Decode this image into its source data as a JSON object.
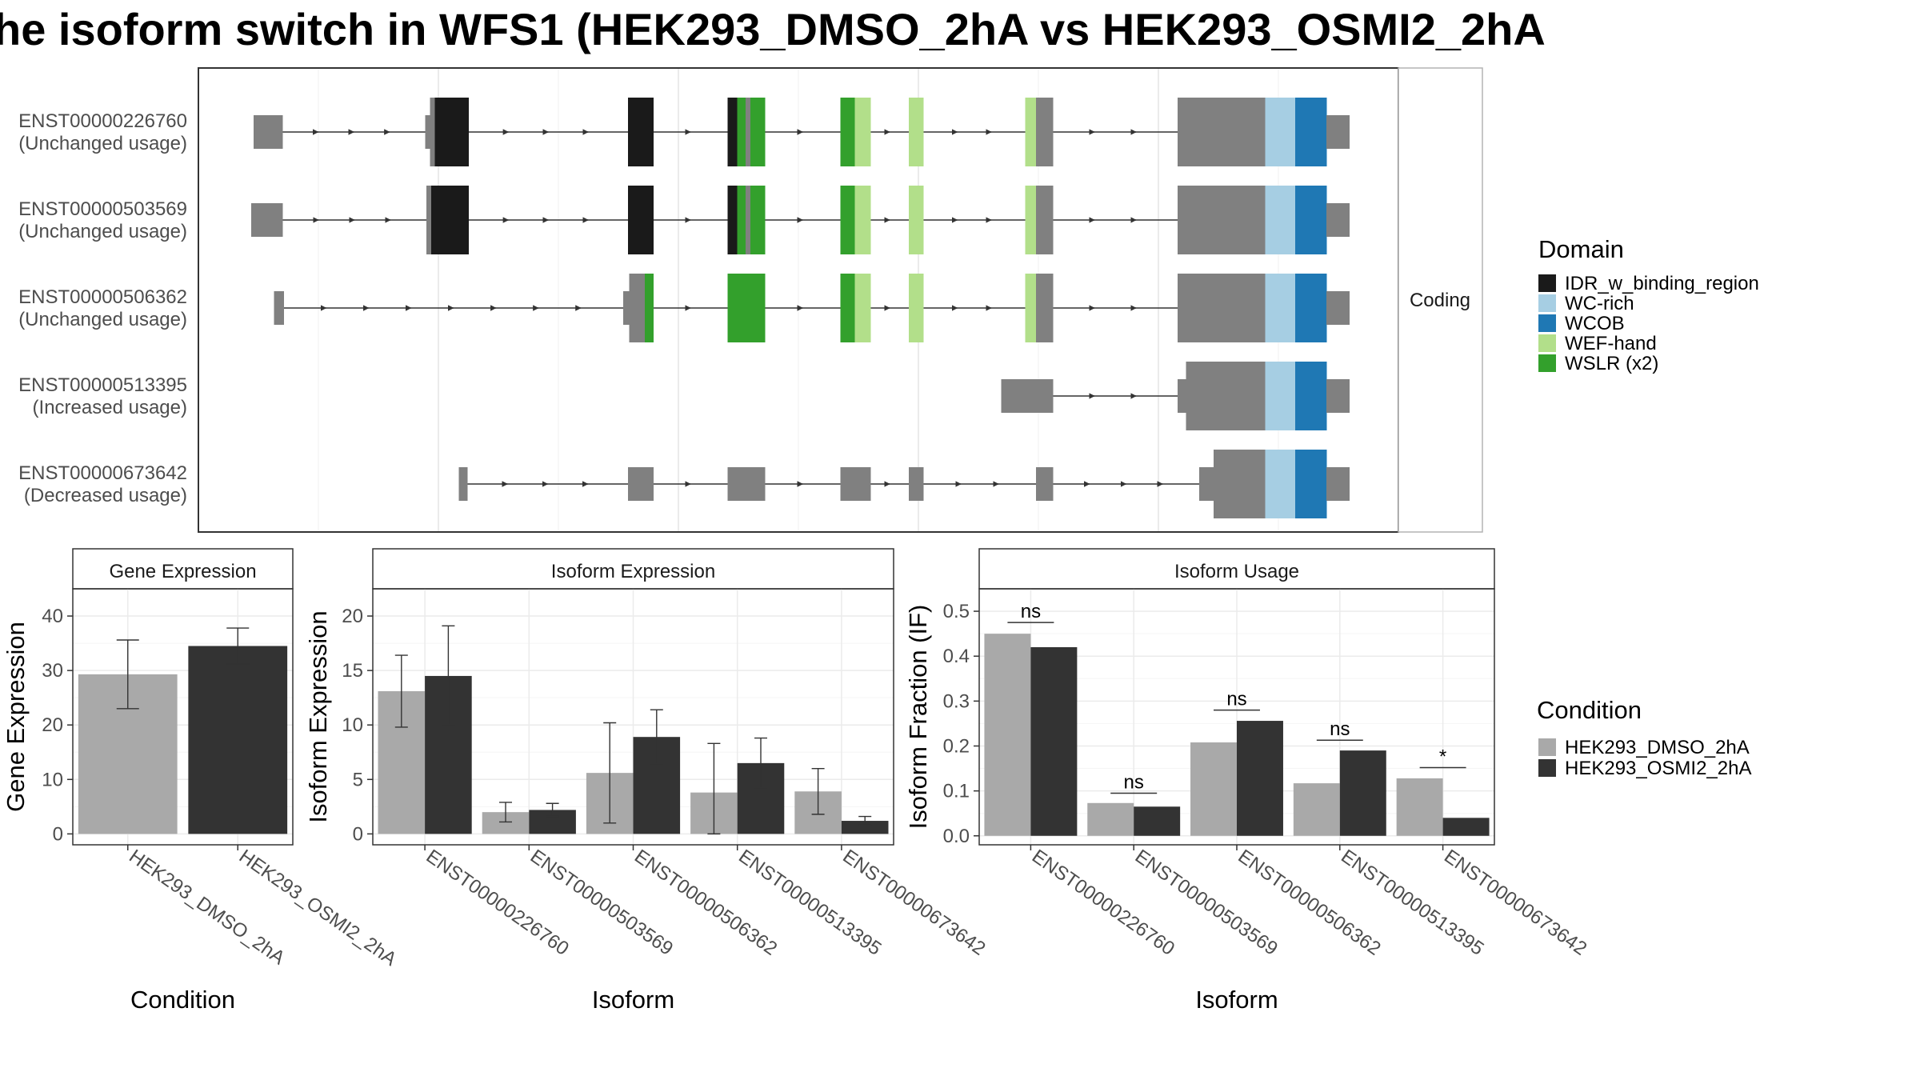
{
  "colors": {
    "gray_exon": "#808080",
    "idr": "#1a1a1a",
    "wc_rich": "#a6cee3",
    "wcob": "#1f78b4",
    "wef_hand": "#b2df8a",
    "wslr": "#33a02c",
    "cond_dmso": "#a9a9a9",
    "cond_osmi2": "#333333"
  },
  "chart_data": [
    {
      "type": "gene-structure",
      "title": "he isoform switch in WFS1 (HEK293_DMSO_2hA vs HEK293_OSMI2_2hA",
      "facet_label": "Coding",
      "legend": {
        "title": "Domain",
        "placement": "right",
        "entries": [
          {
            "label": "IDR_w_binding_region",
            "color": "#1a1a1a"
          },
          {
            "label": "WC-rich",
            "color": "#a6cee3"
          },
          {
            "label": "WCOB",
            "color": "#1f78b4"
          },
          {
            "label": "WEF-hand",
            "color": "#b2df8a"
          },
          {
            "label": "WSLR (x2)",
            "color": "#33a02c"
          }
        ]
      },
      "isoforms": [
        {
          "id": "ENST00000226760",
          "usage": "(Unchanged usage)",
          "start": 4.6,
          "end": 95.9,
          "exons": [
            {
              "s": 4.6,
              "e": 7.0,
              "h": "utr",
              "c": "gray"
            },
            {
              "s": 18.9,
              "e": 19.3,
              "h": "utr",
              "c": "gray"
            },
            {
              "s": 19.3,
              "e": 19.7,
              "h": "cds",
              "c": "gray"
            },
            {
              "s": 19.7,
              "e": 22.5,
              "h": "cds",
              "c": "idr"
            },
            {
              "s": 35.8,
              "e": 37.9,
              "h": "cds",
              "c": "idr"
            },
            {
              "s": 44.1,
              "e": 44.9,
              "h": "cds",
              "c": "idr"
            },
            {
              "s": 44.9,
              "e": 45.6,
              "h": "cds",
              "c": "wslr"
            },
            {
              "s": 45.6,
              "e": 46.0,
              "h": "cds",
              "c": "gray"
            },
            {
              "s": 46.0,
              "e": 47.2,
              "h": "cds",
              "c": "wslr"
            },
            {
              "s": 53.5,
              "e": 54.7,
              "h": "cds",
              "c": "wslr"
            },
            {
              "s": 54.7,
              "e": 56.0,
              "h": "cds",
              "c": "wef_hand"
            },
            {
              "s": 59.2,
              "e": 60.4,
              "h": "cds",
              "c": "wef_hand"
            },
            {
              "s": 68.9,
              "e": 69.8,
              "h": "cds",
              "c": "wef_hand"
            },
            {
              "s": 69.8,
              "e": 71.2,
              "h": "cds",
              "c": "gray"
            },
            {
              "s": 81.6,
              "e": 88.9,
              "h": "cds",
              "c": "gray"
            },
            {
              "s": 88.9,
              "e": 91.4,
              "h": "cds",
              "c": "wc_rich"
            },
            {
              "s": 91.4,
              "e": 94.0,
              "h": "cds",
              "c": "wcob"
            },
            {
              "s": 94.0,
              "e": 95.9,
              "h": "utr",
              "c": "gray"
            }
          ]
        },
        {
          "id": "ENST00000503569",
          "usage": "(Unchanged usage)",
          "start": 4.4,
          "end": 95.9,
          "exons": [
            {
              "s": 4.4,
              "e": 7.0,
              "h": "utr",
              "c": "gray"
            },
            {
              "s": 19.0,
              "e": 19.4,
              "h": "cds",
              "c": "gray"
            },
            {
              "s": 19.4,
              "e": 22.5,
              "h": "cds",
              "c": "idr"
            },
            {
              "s": 35.8,
              "e": 37.9,
              "h": "cds",
              "c": "idr"
            },
            {
              "s": 44.1,
              "e": 44.9,
              "h": "cds",
              "c": "idr"
            },
            {
              "s": 44.9,
              "e": 45.6,
              "h": "cds",
              "c": "wslr"
            },
            {
              "s": 45.6,
              "e": 46.0,
              "h": "cds",
              "c": "gray"
            },
            {
              "s": 46.0,
              "e": 47.2,
              "h": "cds",
              "c": "wslr"
            },
            {
              "s": 53.5,
              "e": 54.7,
              "h": "cds",
              "c": "wslr"
            },
            {
              "s": 54.7,
              "e": 56.0,
              "h": "cds",
              "c": "wef_hand"
            },
            {
              "s": 59.2,
              "e": 60.4,
              "h": "cds",
              "c": "wef_hand"
            },
            {
              "s": 68.9,
              "e": 69.8,
              "h": "cds",
              "c": "wef_hand"
            },
            {
              "s": 69.8,
              "e": 71.2,
              "h": "cds",
              "c": "gray"
            },
            {
              "s": 81.6,
              "e": 88.9,
              "h": "cds",
              "c": "gray"
            },
            {
              "s": 88.9,
              "e": 91.4,
              "h": "cds",
              "c": "wc_rich"
            },
            {
              "s": 91.4,
              "e": 94.0,
              "h": "cds",
              "c": "wcob"
            },
            {
              "s": 94.0,
              "e": 95.9,
              "h": "utr",
              "c": "gray"
            }
          ]
        },
        {
          "id": "ENST00000506362",
          "usage": "(Unchanged usage)",
          "start": 6.3,
          "end": 95.9,
          "exons": [
            {
              "s": 6.3,
              "e": 7.1,
              "h": "utr",
              "c": "gray"
            },
            {
              "s": 35.4,
              "e": 35.9,
              "h": "utr",
              "c": "gray"
            },
            {
              "s": 35.9,
              "e": 37.2,
              "h": "cds",
              "c": "gray"
            },
            {
              "s": 37.2,
              "e": 37.9,
              "h": "cds",
              "c": "wslr"
            },
            {
              "s": 44.1,
              "e": 46.0,
              "h": "cds",
              "c": "wslr"
            },
            {
              "s": 46.0,
              "e": 47.2,
              "h": "cds",
              "c": "wslr"
            },
            {
              "s": 53.5,
              "e": 54.7,
              "h": "cds",
              "c": "wslr"
            },
            {
              "s": 54.7,
              "e": 56.0,
              "h": "cds",
              "c": "wef_hand"
            },
            {
              "s": 59.2,
              "e": 60.4,
              "h": "cds",
              "c": "wef_hand"
            },
            {
              "s": 68.9,
              "e": 69.8,
              "h": "cds",
              "c": "wef_hand"
            },
            {
              "s": 69.8,
              "e": 71.2,
              "h": "cds",
              "c": "gray"
            },
            {
              "s": 81.6,
              "e": 88.9,
              "h": "cds",
              "c": "gray"
            },
            {
              "s": 88.9,
              "e": 91.4,
              "h": "cds",
              "c": "wc_rich"
            },
            {
              "s": 91.4,
              "e": 94.0,
              "h": "cds",
              "c": "wcob"
            },
            {
              "s": 94.0,
              "e": 95.9,
              "h": "utr",
              "c": "gray"
            }
          ]
        },
        {
          "id": "ENST00000513395",
          "usage": "(Increased usage)",
          "start": 66.9,
          "end": 95.9,
          "exons": [
            {
              "s": 66.9,
              "e": 71.2,
              "h": "utr",
              "c": "gray"
            },
            {
              "s": 81.6,
              "e": 82.3,
              "h": "utr",
              "c": "gray"
            },
            {
              "s": 82.3,
              "e": 88.9,
              "h": "cds",
              "c": "gray"
            },
            {
              "s": 88.9,
              "e": 91.4,
              "h": "cds",
              "c": "wc_rich"
            },
            {
              "s": 91.4,
              "e": 94.0,
              "h": "cds",
              "c": "wcob"
            },
            {
              "s": 94.0,
              "e": 95.9,
              "h": "utr",
              "c": "gray"
            }
          ]
        },
        {
          "id": "ENST00000673642",
          "usage": "(Decreased usage)",
          "start": 21.7,
          "end": 95.9,
          "exons": [
            {
              "s": 21.7,
              "e": 22.4,
              "h": "utr",
              "c": "gray"
            },
            {
              "s": 35.8,
              "e": 37.9,
              "h": "utr",
              "c": "gray"
            },
            {
              "s": 44.1,
              "e": 47.2,
              "h": "utr",
              "c": "gray"
            },
            {
              "s": 53.5,
              "e": 56.0,
              "h": "utr",
              "c": "gray"
            },
            {
              "s": 59.2,
              "e": 60.4,
              "h": "utr",
              "c": "gray"
            },
            {
              "s": 69.8,
              "e": 71.2,
              "h": "utr",
              "c": "gray"
            },
            {
              "s": 83.4,
              "e": 84.6,
              "h": "utr",
              "c": "gray"
            },
            {
              "s": 84.6,
              "e": 88.9,
              "h": "cds",
              "c": "gray"
            },
            {
              "s": 88.9,
              "e": 91.4,
              "h": "cds",
              "c": "wc_rich"
            },
            {
              "s": 91.4,
              "e": 94.0,
              "h": "cds",
              "c": "wcob"
            },
            {
              "s": 94.0,
              "e": 95.9,
              "h": "utr",
              "c": "gray"
            }
          ]
        }
      ]
    },
    {
      "type": "bar",
      "title": "Gene Expression",
      "xlabel": "Condition",
      "ylabel": "Gene Expression",
      "ylim": [
        -2,
        45
      ],
      "yticks": [
        0,
        10,
        20,
        30,
        40
      ],
      "categories": [
        "HEK293_DMSO_2hA",
        "HEK293_OSMI2_2hA"
      ],
      "values": [
        29.3,
        34.5
      ],
      "err_low": [
        23.0,
        31.2
      ],
      "err_high": [
        35.6,
        37.8
      ],
      "colors": [
        "#a9a9a9",
        "#333333"
      ]
    },
    {
      "type": "bar",
      "title": "Isoform Expression",
      "xlabel": "Isoform",
      "ylabel": "Isoform Expression",
      "ylim": [
        -1,
        22.5
      ],
      "yticks": [
        0,
        5,
        10,
        15,
        20
      ],
      "categories": [
        "ENST00000226760",
        "ENST00000503569",
        "ENST00000506362",
        "ENST00000513395",
        "ENST00000673642"
      ],
      "series": [
        {
          "name": "HEK293_DMSO_2hA",
          "color": "#a9a9a9",
          "values": [
            13.1,
            2.0,
            5.6,
            3.8,
            3.9
          ],
          "err_low": [
            9.8,
            1.1,
            1.0,
            0.0,
            1.8
          ],
          "err_high": [
            16.4,
            2.9,
            10.2,
            8.3,
            6.0
          ]
        },
        {
          "name": "HEK293_OSMI2_2hA",
          "color": "#333333",
          "values": [
            14.5,
            2.2,
            8.9,
            6.5,
            1.2
          ],
          "err_low": [
            10.0,
            1.6,
            6.4,
            4.2,
            0.8
          ],
          "err_high": [
            19.1,
            2.8,
            11.4,
            8.8,
            1.6
          ]
        }
      ]
    },
    {
      "type": "bar",
      "title": "Isoform Usage",
      "xlabel": "Isoform",
      "ylabel": "Isoform Fraction (IF)",
      "ylim": [
        -0.02,
        0.55
      ],
      "yticks": [
        0.0,
        0.1,
        0.2,
        0.3,
        0.4,
        0.5
      ],
      "ytick_labels": [
        "0.0",
        "0.1",
        "0.2",
        "0.3",
        "0.4",
        "0.5"
      ],
      "categories": [
        "ENST00000226760",
        "ENST00000503569",
        "ENST00000506362",
        "ENST00000513395",
        "ENST00000673642"
      ],
      "series": [
        {
          "name": "HEK293_DMSO_2hA",
          "color": "#a9a9a9",
          "values": [
            0.45,
            0.073,
            0.208,
            0.117,
            0.128
          ]
        },
        {
          "name": "HEK293_OSMI2_2hA",
          "color": "#333333",
          "values": [
            0.42,
            0.065,
            0.256,
            0.19,
            0.04
          ]
        }
      ],
      "significance": [
        {
          "label": "ns",
          "y": 0.475
        },
        {
          "label": "ns",
          "y": 0.095
        },
        {
          "label": "ns",
          "y": 0.28
        },
        {
          "label": "ns",
          "y": 0.213
        },
        {
          "label": "*",
          "y": 0.152
        }
      ]
    }
  ],
  "condition_legend": {
    "title": "Condition",
    "entries": [
      {
        "label": "HEK293_DMSO_2hA",
        "color": "#a9a9a9"
      },
      {
        "label": "HEK293_OSMI2_2hA",
        "color": "#333333"
      }
    ]
  }
}
